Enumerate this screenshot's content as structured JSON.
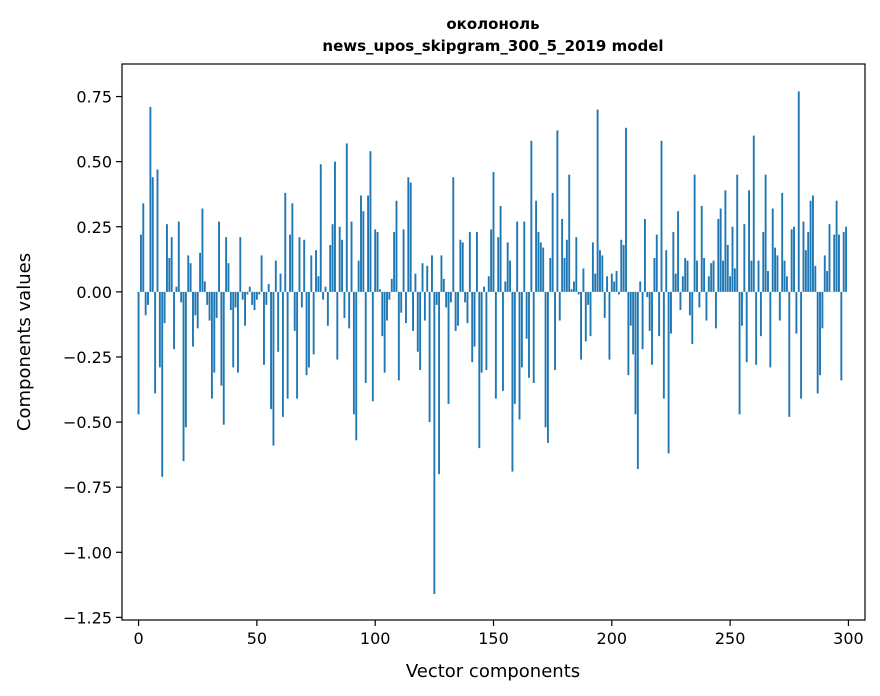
{
  "chart_data": {
    "type": "bar",
    "title": "околоноль",
    "subtitle": "news_upos_skipgram_300_5_2019 model",
    "xlabel": "Vector components",
    "ylabel": "Components values",
    "xlim": [
      -7,
      307
    ],
    "ylim": [
      -1.26,
      0.875
    ],
    "xticks": [
      0,
      50,
      100,
      150,
      200,
      250,
      300
    ],
    "xtick_labels": [
      "0",
      "50",
      "100",
      "150",
      "200",
      "250",
      "300"
    ],
    "yticks": [
      -1.25,
      -1.0,
      -0.75,
      -0.5,
      -0.25,
      0.0,
      0.25,
      0.5,
      0.75
    ],
    "ytick_labels": [
      "−1.25",
      "−1.00",
      "−0.75",
      "−0.50",
      "−0.25",
      "0.00",
      "0.25",
      "0.50",
      "0.75"
    ],
    "bar_color": "#1f77b4",
    "grid": false,
    "values": [
      -0.47,
      0.22,
      0.34,
      -0.09,
      -0.05,
      0.71,
      0.44,
      -0.39,
      0.47,
      -0.29,
      -0.71,
      -0.12,
      0.26,
      0.13,
      0.21,
      -0.22,
      0.02,
      0.27,
      -0.04,
      -0.65,
      -0.52,
      0.14,
      0.11,
      -0.21,
      -0.09,
      -0.14,
      0.15,
      0.32,
      0.04,
      -0.05,
      -0.11,
      -0.41,
      -0.31,
      -0.1,
      0.27,
      -0.36,
      -0.51,
      0.21,
      0.11,
      -0.07,
      -0.29,
      -0.06,
      -0.31,
      0.21,
      -0.03,
      -0.13,
      -0.01,
      0.02,
      -0.05,
      -0.07,
      -0.03,
      -0.01,
      0.14,
      -0.28,
      -0.05,
      0.03,
      -0.45,
      -0.59,
      0.12,
      -0.23,
      0.07,
      -0.48,
      0.38,
      -0.41,
      0.22,
      0.34,
      -0.15,
      -0.41,
      0.21,
      -0.06,
      0.2,
      -0.32,
      -0.29,
      0.14,
      -0.24,
      0.16,
      0.06,
      0.49,
      -0.03,
      0.02,
      -0.13,
      0.18,
      0.26,
      0.5,
      -0.26,
      0.25,
      0.2,
      -0.1,
      0.57,
      -0.14,
      0.27,
      -0.47,
      -0.57,
      0.12,
      0.37,
      0.31,
      -0.35,
      0.37,
      0.54,
      -0.42,
      0.24,
      0.23,
      0.01,
      -0.17,
      -0.31,
      -0.11,
      -0.03,
      0.05,
      0.23,
      0.35,
      -0.34,
      -0.08,
      0.24,
      -0.12,
      0.44,
      0.42,
      -0.15,
      0.07,
      -0.23,
      -0.3,
      0.11,
      -0.11,
      0.1,
      -0.5,
      0.14,
      -1.16,
      -0.05,
      -0.7,
      0.14,
      0.05,
      -0.06,
      -0.43,
      -0.04,
      0.44,
      -0.15,
      -0.13,
      0.2,
      0.19,
      -0.04,
      -0.12,
      0.23,
      -0.27,
      -0.21,
      0.23,
      -0.6,
      -0.31,
      0.02,
      -0.3,
      0.06,
      0.24,
      0.46,
      -0.41,
      0.21,
      0.33,
      -0.38,
      0.04,
      0.19,
      0.12,
      -0.69,
      -0.43,
      0.27,
      -0.49,
      -0.29,
      0.27,
      -0.18,
      -0.33,
      0.58,
      -0.35,
      0.35,
      0.23,
      0.19,
      0.17,
      -0.52,
      -0.58,
      0.13,
      0.38,
      -0.3,
      0.62,
      -0.11,
      0.28,
      0.13,
      0.2,
      0.45,
      0.01,
      0.04,
      0.21,
      -0.01,
      -0.26,
      0.09,
      -0.19,
      -0.05,
      -0.17,
      0.19,
      0.07,
      0.7,
      0.16,
      0.14,
      -0.1,
      0.06,
      -0.26,
      0.07,
      0.04,
      0.08,
      -0.01,
      0.2,
      0.18,
      0.63,
      -0.32,
      -0.13,
      -0.24,
      -0.47,
      -0.68,
      0.04,
      -0.22,
      0.28,
      -0.02,
      -0.15,
      -0.28,
      0.13,
      0.22,
      -0.17,
      0.58,
      -0.41,
      0.16,
      -0.62,
      -0.16,
      0.23,
      0.07,
      0.31,
      -0.07,
      0.06,
      0.13,
      0.12,
      -0.09,
      -0.2,
      0.45,
      0.12,
      -0.06,
      0.33,
      0.13,
      -0.11,
      0.06,
      0.11,
      0.12,
      -0.14,
      0.28,
      0.32,
      0.12,
      0.39,
      0.18,
      0.06,
      0.25,
      0.09,
      0.45,
      -0.47,
      -0.13,
      0.26,
      -0.27,
      0.39,
      0.12,
      0.6,
      -0.28,
      0.12,
      -0.17,
      0.23,
      0.45,
      0.08,
      -0.29,
      0.32,
      0.17,
      0.14,
      -0.11,
      0.38,
      0.12,
      0.06,
      -0.48,
      0.24,
      0.25,
      -0.16,
      0.77,
      -0.41,
      0.27,
      0.16,
      0.23,
      0.35,
      0.37,
      0.1,
      -0.39,
      -0.32,
      -0.14,
      0.14,
      0.08,
      0.26,
      0.0,
      0.22,
      0.35,
      0.22,
      -0.34,
      0.23,
      0.25
    ]
  }
}
